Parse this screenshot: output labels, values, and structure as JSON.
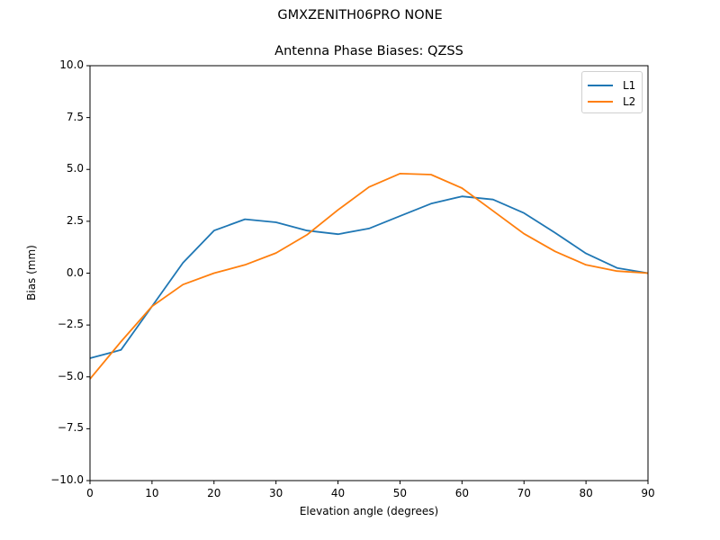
{
  "figure": {
    "suptitle": "GMXZENITH06PRO  NONE",
    "title": "Antenna Phase Biases: QZSS",
    "xlabel": "Elevation angle (degrees)",
    "ylabel": "Bias (mm)"
  },
  "axes": {
    "xticks": [
      "0",
      "10",
      "20",
      "30",
      "40",
      "50",
      "60",
      "70",
      "80",
      "90"
    ],
    "yticks": [
      "10.0",
      "7.5",
      "5.0",
      "2.5",
      "0.0",
      "−2.5",
      "−5.0",
      "−7.5",
      "−10.0"
    ]
  },
  "legend": {
    "items": [
      {
        "label": "L1",
        "color": "#1f77b4"
      },
      {
        "label": "L2",
        "color": "#ff7f0e"
      }
    ]
  },
  "chart_data": {
    "type": "line",
    "title": "Antenna Phase Biases: QZSS",
    "suptitle": "GMXZENITH06PRO  NONE",
    "xlabel": "Elevation angle (degrees)",
    "ylabel": "Bias (mm)",
    "xlim": [
      0,
      90
    ],
    "ylim": [
      -10,
      10
    ],
    "grid": false,
    "legend_position": "upper right",
    "x": [
      0,
      5,
      10,
      15,
      20,
      25,
      30,
      35,
      40,
      45,
      50,
      55,
      60,
      65,
      70,
      75,
      80,
      85,
      90
    ],
    "series": [
      {
        "name": "L1",
        "color": "#1f77b4",
        "values": [
          -4.1,
          -3.7,
          -1.6,
          0.5,
          2.05,
          2.6,
          2.45,
          2.05,
          1.88,
          2.15,
          2.75,
          3.35,
          3.7,
          3.55,
          2.9,
          1.95,
          0.95,
          0.25,
          0.0
        ]
      },
      {
        "name": "L2",
        "color": "#ff7f0e",
        "values": [
          -5.1,
          -3.3,
          -1.6,
          -0.55,
          0.0,
          0.4,
          0.97,
          1.85,
          3.05,
          4.15,
          4.8,
          4.75,
          4.1,
          3.0,
          1.9,
          1.05,
          0.4,
          0.1,
          0.0
        ]
      }
    ]
  }
}
